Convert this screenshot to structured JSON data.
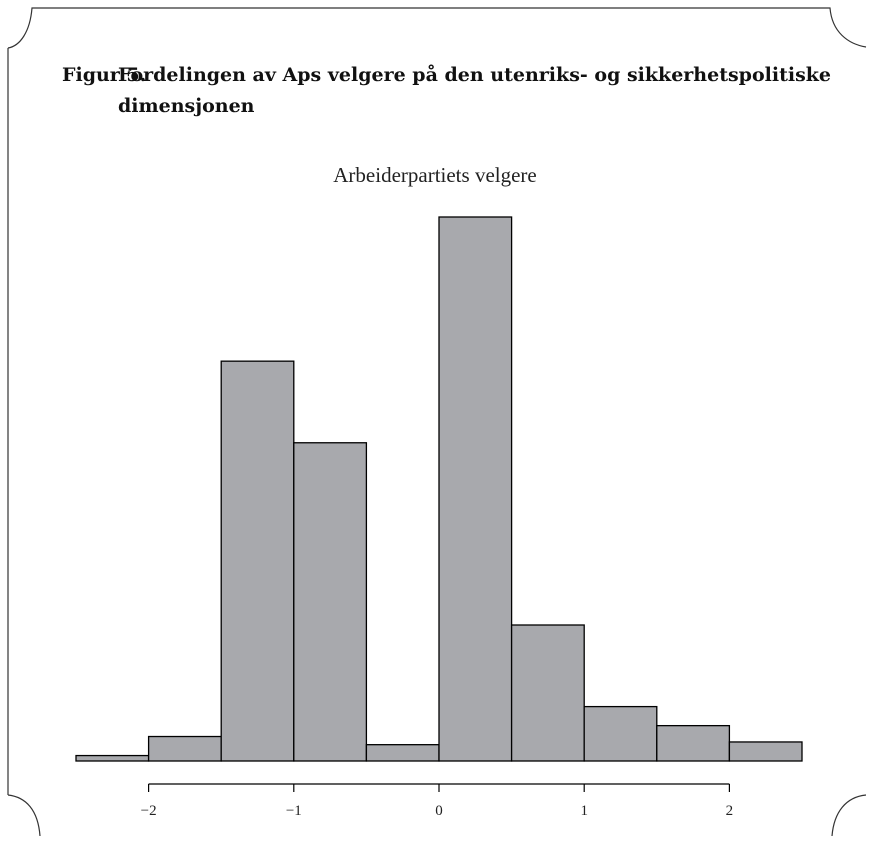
{
  "caption": {
    "figure_number": "Figur 5.",
    "text": "Fordelingen av Aps velgere på den utenriks- og sikkerhetspolitiske dimensjonen"
  },
  "chart_data": {
    "type": "bar",
    "title": "Arbeiderpartiets velgere",
    "xlabel": "",
    "ylabel": "",
    "bins": [
      {
        "from": -2.5,
        "to": -2.0,
        "value": 1.0
      },
      {
        "from": -2.0,
        "to": -1.5,
        "value": 4.5
      },
      {
        "from": -1.5,
        "to": -1.0,
        "value": 73.5
      },
      {
        "from": -1.0,
        "to": -0.5,
        "value": 58.5
      },
      {
        "from": -0.5,
        "to": 0.0,
        "value": 3.0
      },
      {
        "from": 0.0,
        "to": 0.5,
        "value": 100.0
      },
      {
        "from": 0.5,
        "to": 1.0,
        "value": 25.0
      },
      {
        "from": 1.0,
        "to": 1.5,
        "value": 10.0
      },
      {
        "from": 1.5,
        "to": 2.0,
        "value": 6.5
      },
      {
        "from": 2.0,
        "to": 2.5,
        "value": 3.5
      }
    ],
    "x_ticks": [
      -2,
      -1,
      0,
      1,
      2
    ],
    "x_tick_labels": [
      "−2",
      "−1",
      "0",
      "1",
      "2"
    ],
    "xlim": [
      -2.5,
      2.5
    ],
    "ylim": [
      0,
      100
    ],
    "grid": false,
    "bar_color": "#a8a9ad",
    "edge_color": "#000000"
  }
}
